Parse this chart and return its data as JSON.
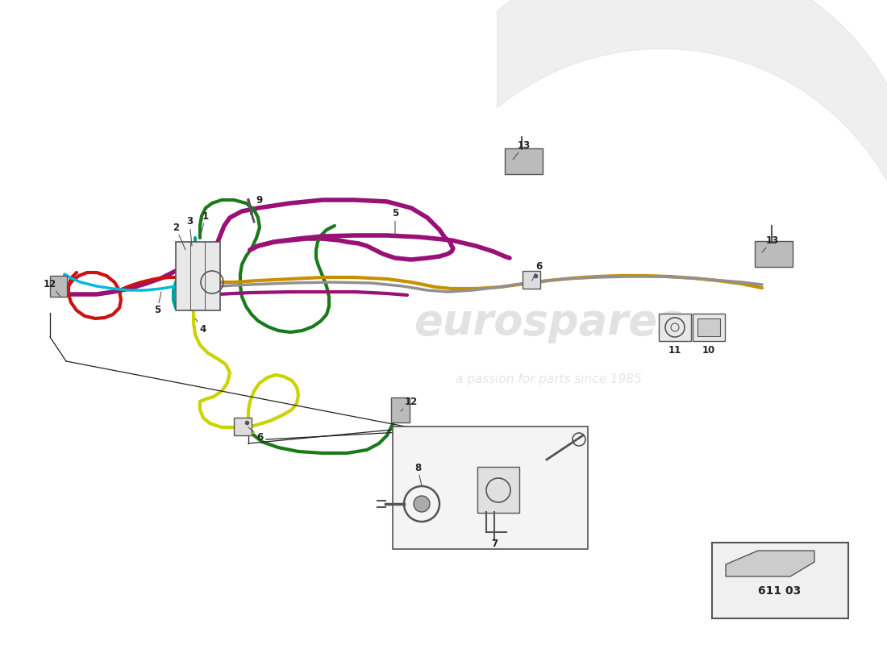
{
  "background_color": "#ffffff",
  "watermark_text": "eurospares",
  "watermark_sub": "a passion for parts since 1985",
  "part_number": "611 03",
  "fig_width": 11.0,
  "fig_height": 8.0,
  "colors": {
    "red": "#cc1111",
    "teal": "#00a0a0",
    "cyan": "#00bbdd",
    "yellow_green": "#c8d400",
    "green": "#1a7a1a",
    "purple": "#991177",
    "gray": "#909090",
    "gold": "#c89000",
    "black": "#222222",
    "dark_gray": "#555555",
    "light_gray": "#aaaaaa",
    "box_fill": "#e8e8e8",
    "detail_fill": "#f4f4f4"
  }
}
